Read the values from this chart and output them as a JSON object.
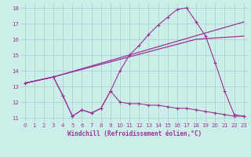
{
  "title": "",
  "xlabel": "Windchill (Refroidissement éolien,°C)",
  "ylabel": "",
  "xlim": [
    -0.5,
    23.5
  ],
  "ylim": [
    10.7,
    18.3
  ],
  "yticks": [
    11,
    12,
    13,
    14,
    15,
    16,
    17,
    18
  ],
  "xticks": [
    0,
    1,
    2,
    3,
    4,
    5,
    6,
    7,
    8,
    9,
    10,
    11,
    12,
    13,
    14,
    15,
    16,
    17,
    18,
    19,
    20,
    21,
    22,
    23
  ],
  "bg_color": "#cceee8",
  "grid_color": "#aacccc",
  "line_color": "#993399",
  "series": [
    {
      "x": [
        0,
        3,
        23
      ],
      "y": [
        13.2,
        13.6,
        17.1
      ],
      "marker": false
    },
    {
      "x": [
        0,
        3,
        18,
        23
      ],
      "y": [
        13.2,
        13.6,
        16.0,
        16.2
      ],
      "marker": false
    },
    {
      "x": [
        0,
        3,
        4,
        5,
        6,
        7,
        8,
        9,
        10,
        11,
        12,
        13,
        14,
        15,
        16,
        17,
        18,
        19,
        20,
        21,
        22,
        23
      ],
      "y": [
        13.2,
        13.6,
        12.4,
        11.1,
        11.5,
        11.3,
        11.6,
        12.7,
        12.0,
        11.9,
        11.9,
        11.8,
        11.8,
        11.7,
        11.6,
        11.6,
        11.5,
        11.4,
        11.3,
        11.2,
        11.1,
        11.1
      ],
      "marker": true
    },
    {
      "x": [
        0,
        3,
        4,
        5,
        6,
        7,
        8,
        9,
        10,
        11,
        12,
        13,
        14,
        15,
        16,
        17,
        18,
        19,
        20,
        21,
        22,
        23
      ],
      "y": [
        13.2,
        13.6,
        12.4,
        11.1,
        11.5,
        11.3,
        11.6,
        12.7,
        14.0,
        15.0,
        15.6,
        16.3,
        16.9,
        17.4,
        17.9,
        18.0,
        17.1,
        16.2,
        14.5,
        12.7,
        11.2,
        11.1
      ],
      "marker": true
    }
  ]
}
